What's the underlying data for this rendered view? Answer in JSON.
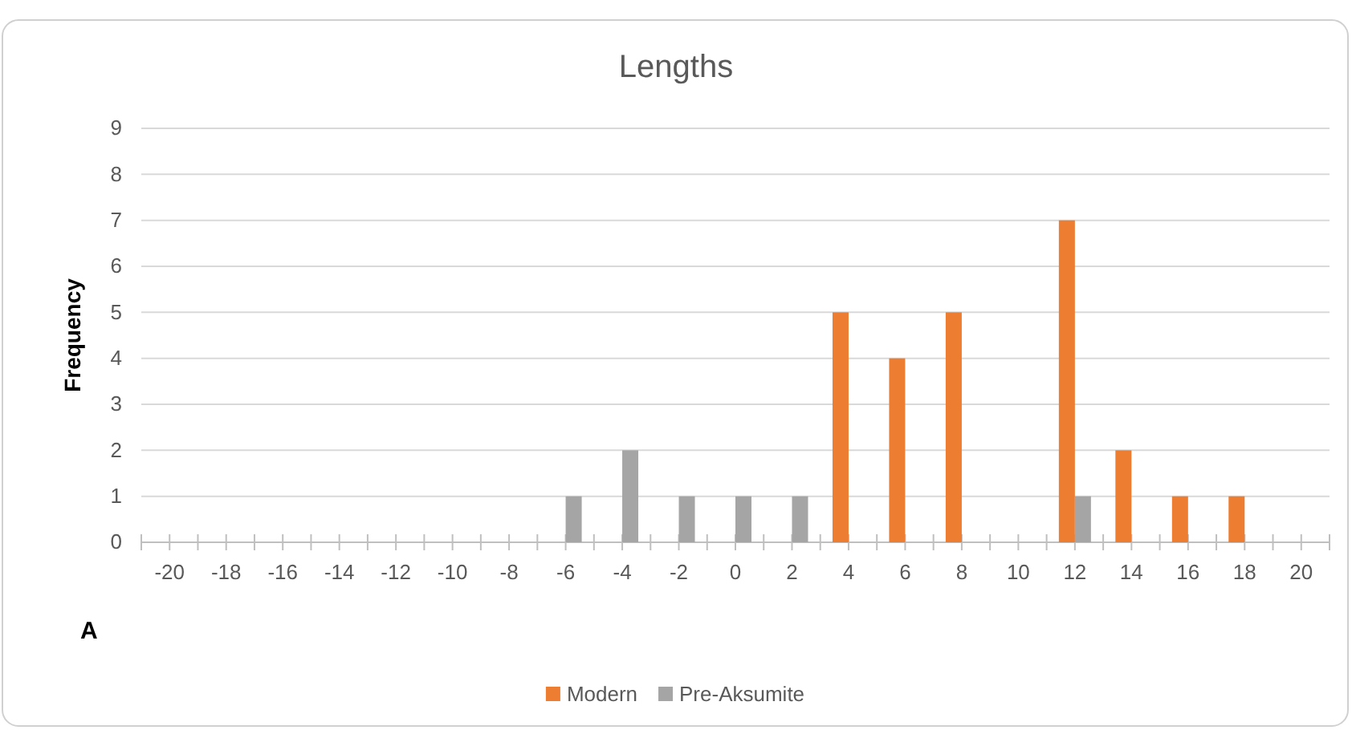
{
  "chart_data": {
    "type": "bar",
    "title": "Lengths",
    "ylabel": "Frequency",
    "categories": [
      "-20",
      "-18",
      "-16",
      "-14",
      "-12",
      "-10",
      "-8",
      "-6",
      "-4",
      "-2",
      "0",
      "2",
      "4",
      "6",
      "8",
      "10",
      "12",
      "14",
      "16",
      "18",
      "20"
    ],
    "series": [
      {
        "name": "Modern",
        "color": "#ed7d31",
        "values": [
          0,
          0,
          0,
          0,
          0,
          0,
          0,
          0,
          0,
          0,
          0,
          0,
          5,
          4,
          5,
          0,
          7,
          2,
          1,
          1,
          0
        ]
      },
      {
        "name": "Pre-Aksumite",
        "color": "#a5a5a5",
        "values": [
          0,
          0,
          0,
          0,
          0,
          0,
          0,
          1,
          2,
          1,
          1,
          1,
          0,
          0,
          0,
          0,
          1,
          0,
          0,
          0,
          0
        ]
      }
    ],
    "ylim": [
      0,
      9
    ],
    "yticks": [
      0,
      1,
      2,
      3,
      4,
      5,
      6,
      7,
      8,
      9
    ],
    "grid": "y",
    "legend": "bottom",
    "annotations": [
      "A"
    ]
  }
}
